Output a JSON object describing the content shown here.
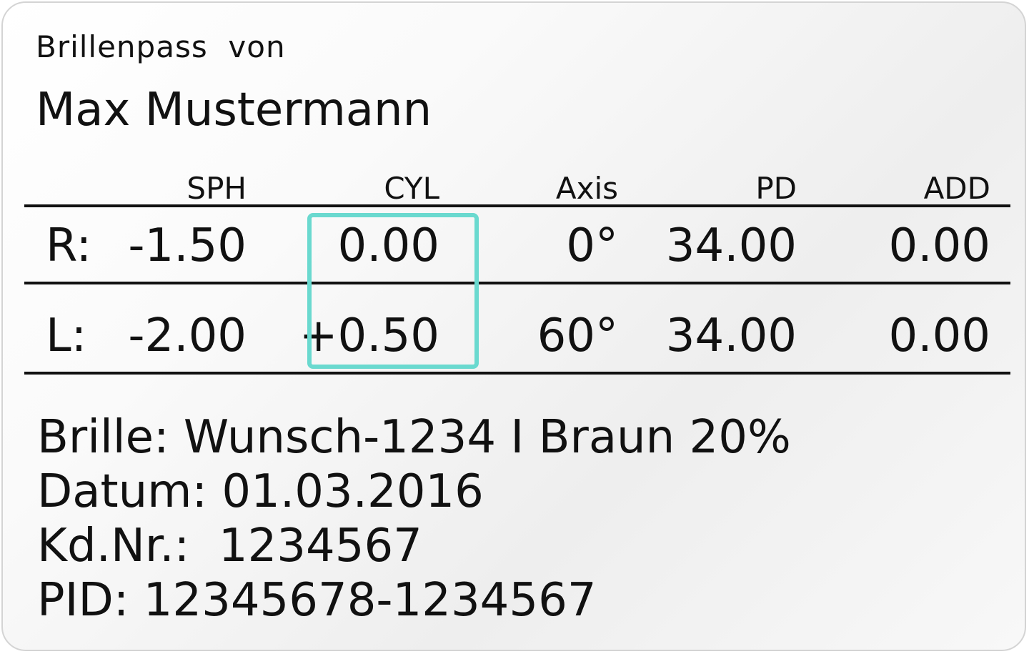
{
  "header": {
    "subtitle": "Brillenpass  von",
    "name": "Max Mustermann"
  },
  "table": {
    "columns": [
      "SPH",
      "CYL",
      "Axis",
      "PD",
      "ADD"
    ],
    "rows": [
      {
        "eye": "R:",
        "values": [
          "-1.50",
          "0.00",
          "0°",
          "34.00",
          "0.00"
        ]
      },
      {
        "eye": "L:",
        "values": [
          "-2.00",
          "+0.50",
          "60°",
          "34.00",
          "0.00"
        ]
      }
    ],
    "highlighted_column": "CYL",
    "highlight_color": "#6ad9cf"
  },
  "details": {
    "brille": "Brille: Wunsch-1234 I Braun 20%",
    "datum": "Datum: 01.03.2016",
    "kdnr": "Kd.Nr.:  1234567",
    "pid": "PID: 12345678-1234567"
  }
}
